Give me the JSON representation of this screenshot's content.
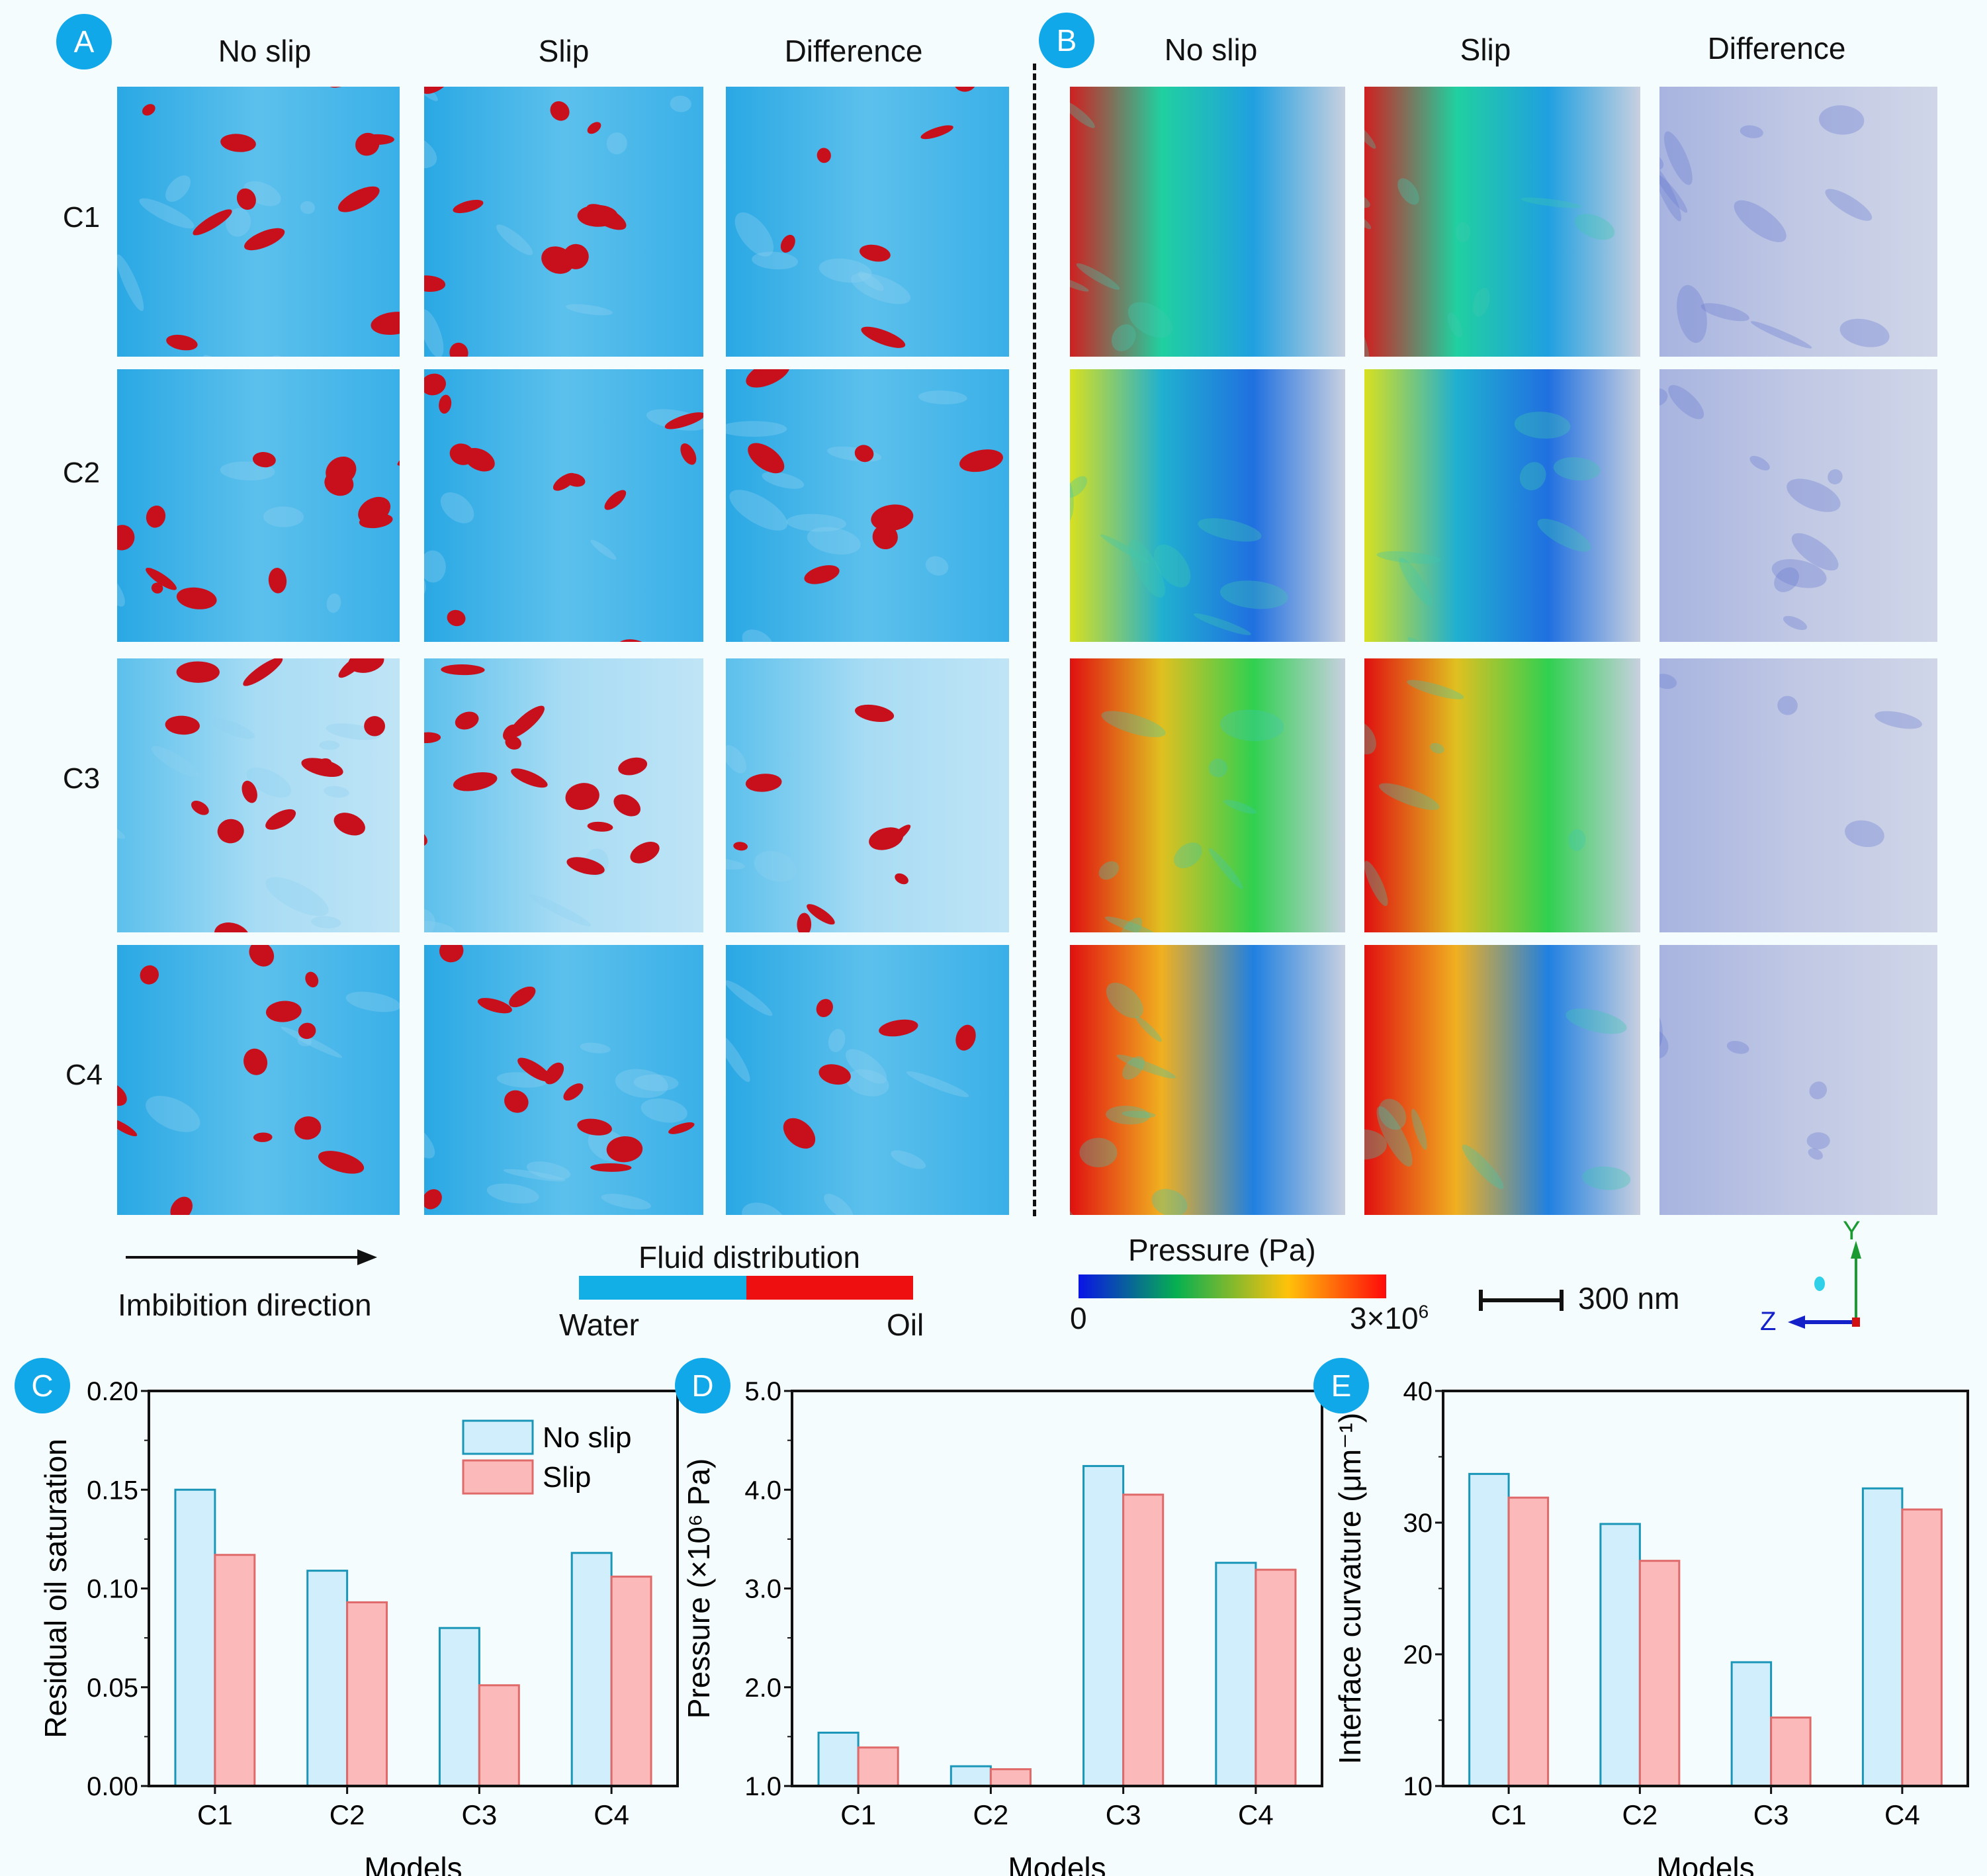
{
  "panel_a": {
    "badge": "A",
    "columns": [
      "No slip",
      "Slip",
      "Difference"
    ]
  },
  "panel_b": {
    "badge": "B",
    "columns": [
      "No slip",
      "Slip",
      "Difference"
    ]
  },
  "rows": [
    "C1",
    "C2",
    "C3",
    "C4"
  ],
  "legend": {
    "imbibition": "Imbibition direction",
    "fluid": {
      "title": "Fluid distribution",
      "left": "Water",
      "right": "Oil",
      "water_color": "#12aee6",
      "oil_color": "#ee1010"
    },
    "pressure": {
      "title": "Pressure (Pa)",
      "min": "0",
      "max": "3×10",
      "max_exp": "6",
      "colors": [
        "#0a14e6",
        "#07b050",
        "#ffc20a",
        "#ff0a0a"
      ]
    },
    "scale_bar": "300 nm",
    "axes": {
      "y": "Y",
      "z": "Z"
    }
  },
  "badges": {
    "c": "C",
    "d": "D",
    "e": "E"
  },
  "chart_data": [
    {
      "type": "bar",
      "categories": [
        "C1",
        "C2",
        "C3",
        "C4"
      ],
      "series": [
        {
          "name": "No slip",
          "values": [
            0.15,
            0.109,
            0.08,
            0.118
          ],
          "fill": "#d0eefb",
          "stroke": "#1a96b8"
        },
        {
          "name": "Slip",
          "values": [
            0.117,
            0.093,
            0.051,
            0.106
          ],
          "fill": "#fbb9b9",
          "stroke": "#e06a6a"
        }
      ],
      "xlabel": "Models",
      "ylabel": "Residual oil saturation",
      "ylim": [
        0,
        0.2
      ],
      "yticks": [
        "0.00",
        "0.05",
        "0.10",
        "0.15",
        "0.20"
      ],
      "legend": "top-right"
    },
    {
      "type": "bar",
      "categories": [
        "C1",
        "C2",
        "C3",
        "C4"
      ],
      "series": [
        {
          "name": "No slip",
          "values": [
            1.54,
            1.2,
            4.24,
            3.26
          ],
          "fill": "#d0eefb",
          "stroke": "#1a96b8"
        },
        {
          "name": "Slip",
          "values": [
            1.39,
            1.17,
            3.95,
            3.19
          ],
          "fill": "#fbb9b9",
          "stroke": "#e06a6a"
        }
      ],
      "xlabel": "Models",
      "ylabel": "Pressure (×10⁶ Pa)",
      "ylim": [
        1.0,
        5.0
      ],
      "yticks": [
        "1.0",
        "2.0",
        "3.0",
        "4.0",
        "5.0"
      ]
    },
    {
      "type": "bar",
      "categories": [
        "C1",
        "C2",
        "C3",
        "C4"
      ],
      "series": [
        {
          "name": "No slip",
          "values": [
            33.7,
            29.9,
            19.4,
            32.6
          ],
          "fill": "#d0eefb",
          "stroke": "#1a96b8"
        },
        {
          "name": "Slip",
          "values": [
            31.9,
            27.1,
            15.2,
            31.0
          ],
          "fill": "#fbb9b9",
          "stroke": "#e06a6a"
        }
      ],
      "xlabel": "Models",
      "ylabel": "Interface curvature (μm⁻¹)",
      "ylim": [
        10,
        40
      ],
      "yticks": [
        "10",
        "20",
        "30",
        "40"
      ]
    }
  ]
}
